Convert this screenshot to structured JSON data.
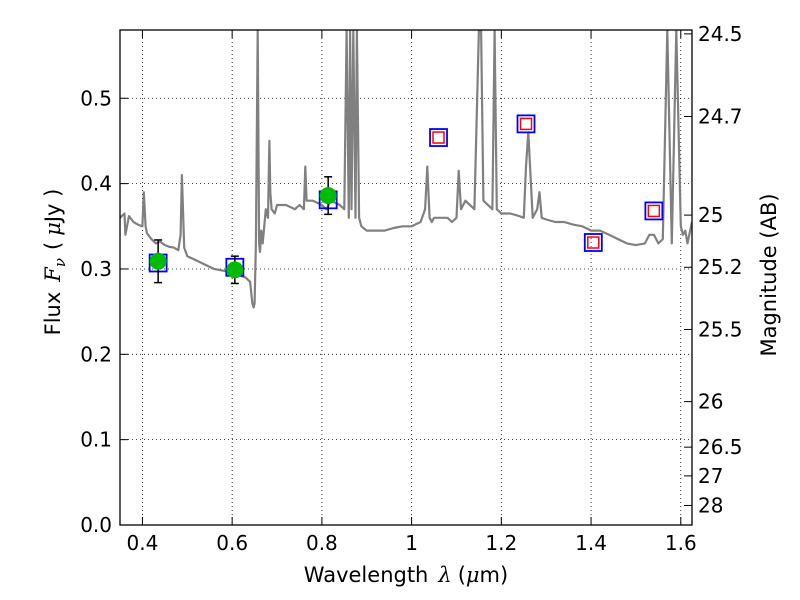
{
  "chart_data": {
    "type": "scatter",
    "title": "",
    "xlabel": {
      "prefix": "Wavelength",
      "symbol": "λ",
      "unit_open": "(",
      "unit_mu": "μ",
      "unit_rest": "m)"
    },
    "ylabel": {
      "prefix": "Flux",
      "symbol": "F",
      "subscript": "ν",
      "unit_open": "(",
      "unit_mu": "μ",
      "unit_rest": "Jy )"
    },
    "y2label": "Magnitude (AB)",
    "xlim": [
      0.35,
      1.625
    ],
    "ylim": [
      0.0,
      0.58
    ],
    "grid": true,
    "xticks": [
      {
        "value": 0.4,
        "label": "0.4"
      },
      {
        "value": 0.6,
        "label": "0.6"
      },
      {
        "value": 0.8,
        "label": "0.8"
      },
      {
        "value": 1.0,
        "label": "1"
      },
      {
        "value": 1.2,
        "label": "1.2"
      },
      {
        "value": 1.4,
        "label": "1.4"
      },
      {
        "value": 1.6,
        "label": "1.6"
      }
    ],
    "yticks": [
      {
        "value": 0.0,
        "label": "0.0"
      },
      {
        "value": 0.1,
        "label": "0.1"
      },
      {
        "value": 0.2,
        "label": "0.2"
      },
      {
        "value": 0.3,
        "label": "0.3"
      },
      {
        "value": 0.4,
        "label": "0.4"
      },
      {
        "value": 0.5,
        "label": "0.5"
      }
    ],
    "y2ticks": [
      {
        "mag": 24.5,
        "label": "24.5"
      },
      {
        "mag": 24.7,
        "label": "24.7"
      },
      {
        "mag": 25.0,
        "label": "25"
      },
      {
        "mag": 25.2,
        "label": "25.2"
      },
      {
        "mag": 25.5,
        "label": "25.5"
      },
      {
        "mag": 26.0,
        "label": "26"
      },
      {
        "mag": 26.5,
        "label": "26.5"
      },
      {
        "mag": 27.0,
        "label": "27"
      },
      {
        "mag": 28.0,
        "label": "28"
      }
    ],
    "series": [
      {
        "kind": "model-spectrum",
        "color": "#808080",
        "x": [
          0.35,
          0.36,
          0.362,
          0.37,
          0.38,
          0.39,
          0.4,
          0.403,
          0.407,
          0.41,
          0.42,
          0.43,
          0.44,
          0.45,
          0.46,
          0.47,
          0.48,
          0.485,
          0.488,
          0.493,
          0.5,
          0.52,
          0.54,
          0.56,
          0.58,
          0.6,
          0.62,
          0.63,
          0.64,
          0.645,
          0.648,
          0.65,
          0.653,
          0.657,
          0.66,
          0.662,
          0.665,
          0.668,
          0.675,
          0.68,
          0.683,
          0.685,
          0.688,
          0.695,
          0.7,
          0.72,
          0.74,
          0.75,
          0.76,
          0.763,
          0.766,
          0.78,
          0.8,
          0.81,
          0.82,
          0.84,
          0.85,
          0.855,
          0.86,
          0.863,
          0.866,
          0.87,
          0.875,
          0.878,
          0.883,
          0.888,
          0.9,
          0.92,
          0.94,
          0.96,
          0.98,
          1.0,
          1.02,
          1.03,
          1.035,
          1.04,
          1.045,
          1.05,
          1.06,
          1.08,
          1.09,
          1.1,
          1.105,
          1.11,
          1.12,
          1.14,
          1.15,
          1.155,
          1.16,
          1.18,
          1.185,
          1.19,
          1.2,
          1.22,
          1.24,
          1.25,
          1.255,
          1.26,
          1.27,
          1.28,
          1.285,
          1.29,
          1.3,
          1.32,
          1.34,
          1.36,
          1.38,
          1.4,
          1.42,
          1.44,
          1.46,
          1.48,
          1.5,
          1.52,
          1.53,
          1.54,
          1.55,
          1.56,
          1.57,
          1.58,
          1.59,
          1.6,
          1.605,
          1.61,
          1.615,
          1.625
        ],
        "y": [
          0.36,
          0.365,
          0.34,
          0.362,
          0.355,
          0.352,
          0.35,
          0.39,
          0.35,
          0.342,
          0.335,
          0.33,
          0.332,
          0.328,
          0.326,
          0.325,
          0.322,
          0.34,
          0.41,
          0.325,
          0.315,
          0.31,
          0.305,
          0.3,
          0.298,
          0.296,
          0.292,
          0.29,
          0.285,
          0.26,
          0.255,
          0.26,
          0.33,
          0.58,
          0.33,
          0.32,
          0.345,
          0.33,
          0.37,
          0.36,
          0.45,
          0.39,
          0.37,
          0.365,
          0.375,
          0.375,
          0.37,
          0.375,
          0.37,
          0.42,
          0.38,
          0.38,
          0.375,
          0.37,
          0.38,
          0.375,
          0.37,
          0.58,
          0.36,
          0.58,
          0.37,
          0.58,
          0.36,
          0.58,
          0.36,
          0.35,
          0.345,
          0.345,
          0.345,
          0.348,
          0.35,
          0.35,
          0.355,
          0.37,
          0.42,
          0.36,
          0.355,
          0.36,
          0.36,
          0.36,
          0.355,
          0.36,
          0.415,
          0.37,
          0.38,
          0.37,
          0.58,
          0.58,
          0.38,
          0.37,
          0.58,
          0.37,
          0.365,
          0.365,
          0.362,
          0.36,
          0.42,
          0.46,
          0.36,
          0.37,
          0.39,
          0.36,
          0.358,
          0.355,
          0.355,
          0.352,
          0.35,
          0.345,
          0.345,
          0.34,
          0.335,
          0.33,
          0.328,
          0.33,
          0.34,
          0.34,
          0.33,
          0.335,
          0.58,
          0.33,
          0.58,
          0.35,
          0.34,
          0.345,
          0.33,
          0.355
        ]
      },
      {
        "kind": "observed",
        "marker": "circle",
        "color": "#00bb00",
        "errorbar_color": "#000000",
        "points": [
          {
            "x": 0.435,
            "y": 0.309,
            "yerr": 0.025
          },
          {
            "x": 0.606,
            "y": 0.299,
            "yerr": 0.016
          },
          {
            "x": 0.814,
            "y": 0.386,
            "yerr": 0.022
          }
        ]
      },
      {
        "kind": "model-band",
        "marker": "square",
        "color": "#0000ff",
        "points": [
          {
            "x": 0.435,
            "y": 0.307
          },
          {
            "x": 0.606,
            "y": 0.302
          },
          {
            "x": 0.814,
            "y": 0.381
          },
          {
            "x": 1.06,
            "y": 0.454
          },
          {
            "x": 1.255,
            "y": 0.47
          },
          {
            "x": 1.405,
            "y": 0.331
          },
          {
            "x": 1.54,
            "y": 0.368
          }
        ]
      },
      {
        "kind": "upper-limit",
        "marker": "square-open",
        "color": "#ff0000",
        "points": [
          {
            "x": 1.06,
            "y": 0.454
          },
          {
            "x": 1.255,
            "y": 0.47
          },
          {
            "x": 1.405,
            "y": 0.331
          },
          {
            "x": 1.54,
            "y": 0.368
          }
        ]
      }
    ]
  }
}
